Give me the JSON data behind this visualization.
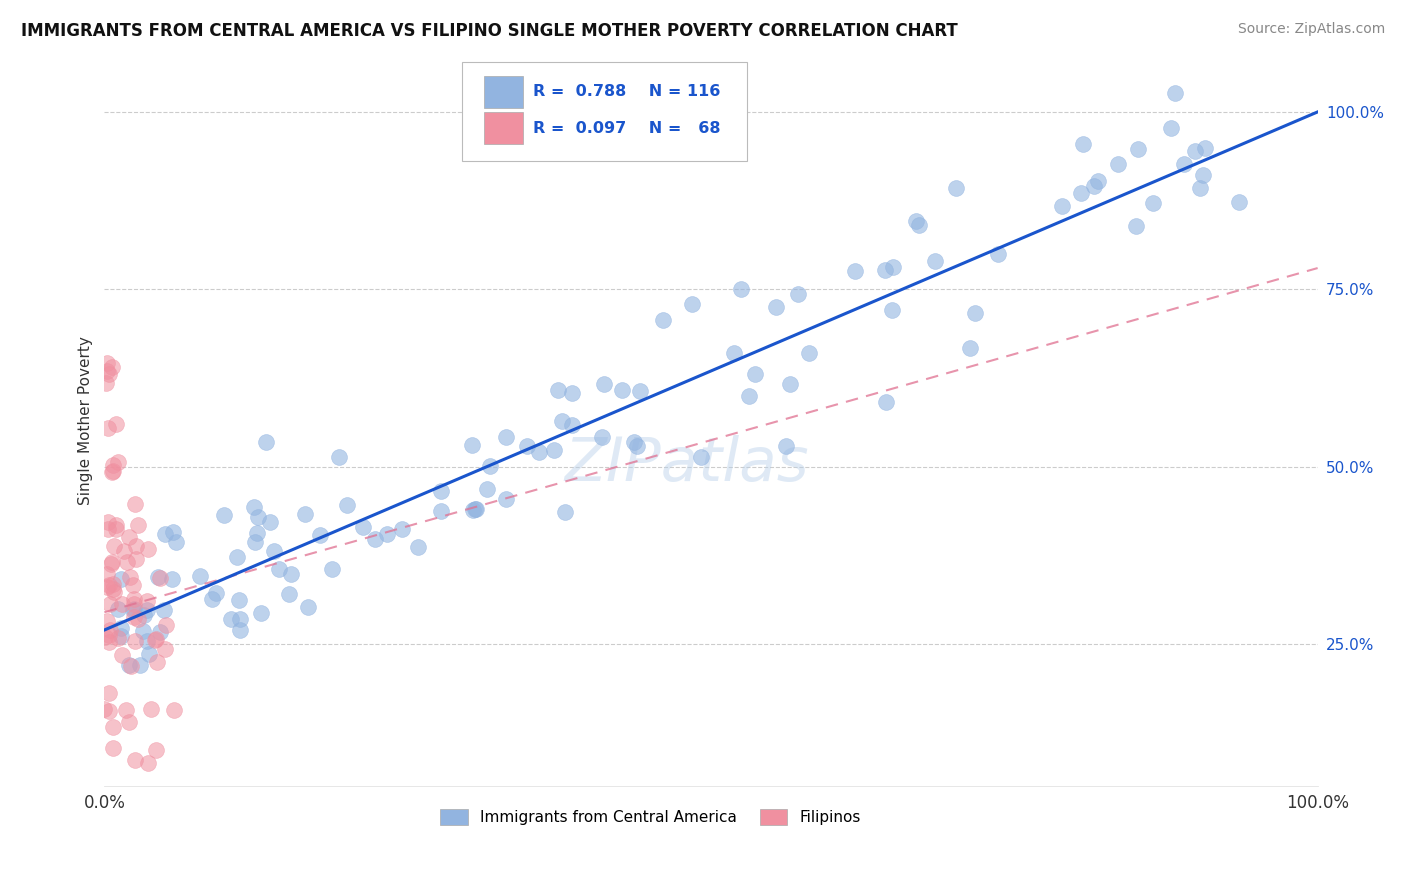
{
  "title": "IMMIGRANTS FROM CENTRAL AMERICA VS FILIPINO SINGLE MOTHER POVERTY CORRELATION CHART",
  "source": "Source: ZipAtlas.com",
  "ylabel": "Single Mother Poverty",
  "legend_label_blue": "Immigrants from Central America",
  "legend_label_pink": "Filipinos",
  "blue_color": "#92b4e0",
  "pink_color": "#f090a0",
  "line_blue": "#1a55cc",
  "line_pink": "#e07090",
  "watermark": "ZIPatlas",
  "blue_trend_x": [
    0.0,
    1.0
  ],
  "blue_trend_y": [
    0.27,
    1.0
  ],
  "pink_trend_x": [
    0.0,
    1.0
  ],
  "pink_trend_y": [
    0.295,
    0.78
  ],
  "xlim": [
    0.0,
    1.0
  ],
  "ylim": [
    0.05,
    1.08
  ],
  "ytick_positions": [
    0.25,
    0.5,
    0.75,
    1.0
  ],
  "ytick_labels": [
    "25.0%",
    "50.0%",
    "75.0%",
    "100.0%"
  ],
  "title_fontsize": 12,
  "source_fontsize": 10,
  "axis_label_fontsize": 11,
  "marker_size": 130,
  "legend_r_blue": "R =  0.788",
  "legend_n_blue": "N = 116",
  "legend_r_pink": "R =  0.097",
  "legend_n_pink": "N =   68"
}
